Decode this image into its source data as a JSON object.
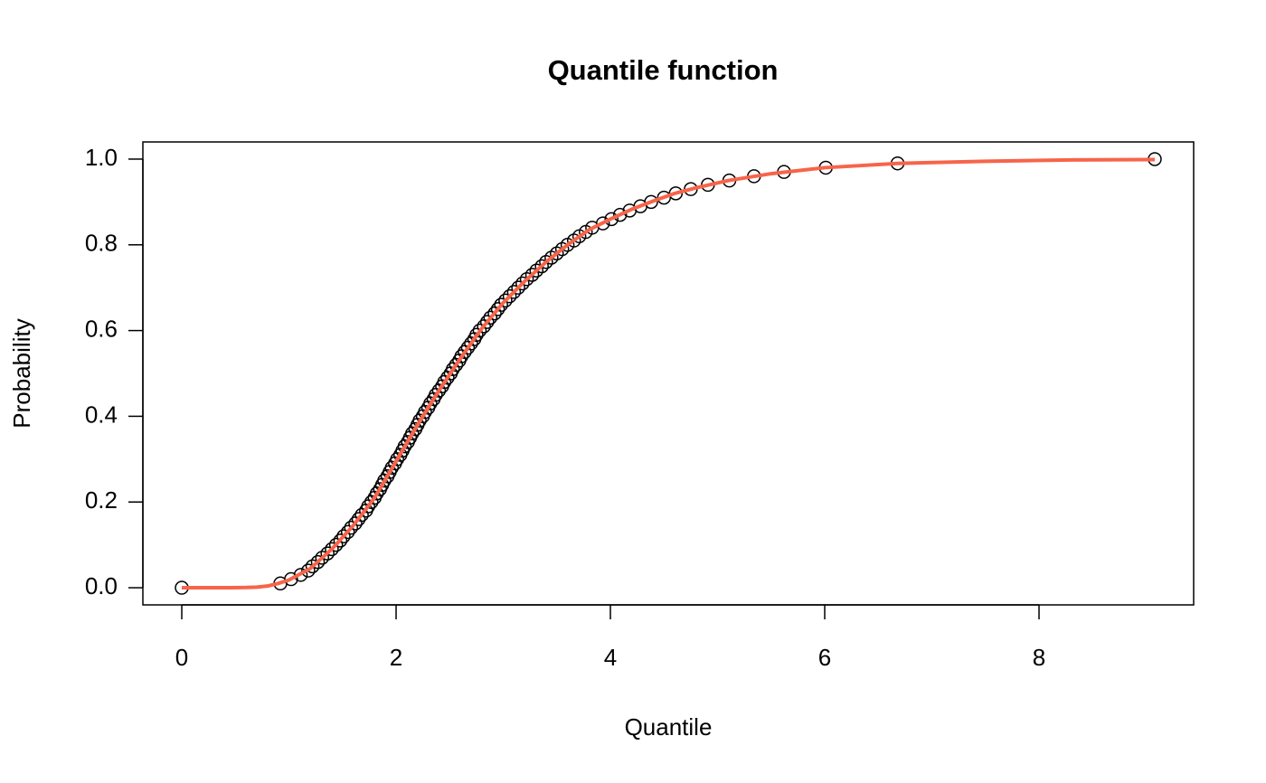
{
  "chart_data": {
    "type": "scatter",
    "title": "Quantile function",
    "xlabel": "Quantile",
    "ylabel": "Probability",
    "xlim": [
      -0.363,
      9.443
    ],
    "ylim": [
      -0.04,
      1.04
    ],
    "xticks": [
      0,
      2,
      4,
      6,
      8
    ],
    "yticks": [
      {
        "value": 0,
        "label": "0.0"
      },
      0.2,
      0.4,
      0.6,
      0.8,
      {
        "value": 1,
        "label": "1.0"
      }
    ],
    "series": [
      {
        "mode": "markers",
        "color": "#000000",
        "x": [
          0,
          0.92,
          1.02,
          1.11,
          1.18,
          1.22,
          1.27,
          1.31,
          1.36,
          1.4,
          1.44,
          1.48,
          1.51,
          1.55,
          1.58,
          1.62,
          1.65,
          1.68,
          1.72,
          1.74,
          1.77,
          1.8,
          1.82,
          1.85,
          1.87,
          1.89,
          1.92,
          1.94,
          1.96,
          1.99,
          2.01,
          2.04,
          2.06,
          2.08,
          2.11,
          2.13,
          2.15,
          2.18,
          2.2,
          2.22,
          2.25,
          2.27,
          2.3,
          2.32,
          2.35,
          2.37,
          2.4,
          2.43,
          2.45,
          2.48,
          2.51,
          2.53,
          2.56,
          2.59,
          2.61,
          2.64,
          2.67,
          2.7,
          2.73,
          2.75,
          2.78,
          2.82,
          2.85,
          2.88,
          2.92,
          2.95,
          2.98,
          3.02,
          3.06,
          3.1,
          3.14,
          3.18,
          3.22,
          3.27,
          3.31,
          3.36,
          3.4,
          3.45,
          3.5,
          3.55,
          3.6,
          3.66,
          3.71,
          3.77,
          3.83,
          3.93,
          4.01,
          4.09,
          4.18,
          4.28,
          4.38,
          4.5,
          4.61,
          4.75,
          4.91,
          5.11,
          5.34,
          5.62,
          6.01,
          6.68,
          9.08
        ],
        "values": [
          0,
          0.01,
          0.02,
          0.03,
          0.04,
          0.05,
          0.06,
          0.07,
          0.08,
          0.09,
          0.1,
          0.11,
          0.12,
          0.13,
          0.14,
          0.15,
          0.16,
          0.17,
          0.18,
          0.19,
          0.2,
          0.21,
          0.22,
          0.23,
          0.24,
          0.25,
          0.26,
          0.27,
          0.28,
          0.29,
          0.3,
          0.31,
          0.32,
          0.33,
          0.34,
          0.35,
          0.36,
          0.37,
          0.38,
          0.39,
          0.4,
          0.41,
          0.42,
          0.43,
          0.44,
          0.45,
          0.46,
          0.47,
          0.48,
          0.49,
          0.5,
          0.51,
          0.52,
          0.53,
          0.54,
          0.55,
          0.56,
          0.57,
          0.58,
          0.59,
          0.6,
          0.61,
          0.62,
          0.63,
          0.64,
          0.65,
          0.66,
          0.67,
          0.68,
          0.69,
          0.7,
          0.71,
          0.72,
          0.73,
          0.74,
          0.75,
          0.76,
          0.77,
          0.78,
          0.79,
          0.8,
          0.81,
          0.82,
          0.83,
          0.84,
          0.85,
          0.86,
          0.87,
          0.88,
          0.89,
          0.9,
          0.91,
          0.92,
          0.93,
          0.94,
          0.95,
          0.96,
          0.97,
          0.98,
          0.99,
          1
        ]
      },
      {
        "mode": "line",
        "color": "#f7644a",
        "x": [
          0,
          0.2,
          0.4,
          0.6,
          0.7,
          0.8,
          0.9,
          1.0,
          1.2,
          1.4,
          1.6,
          1.8,
          2.0,
          2.2,
          2.4,
          2.6,
          2.8,
          3.0,
          3.2,
          3.4,
          3.6,
          3.8,
          4.0,
          4.2,
          4.4,
          4.6,
          4.8,
          5.1,
          5.5,
          6.0,
          6.68,
          7.5,
          8.3,
          9.08
        ],
        "values": [
          0,
          0,
          0,
          0.0005,
          0.0015,
          0.004,
          0.01,
          0.018,
          0.045,
          0.09,
          0.145,
          0.21,
          0.295,
          0.38,
          0.46,
          0.535,
          0.605,
          0.665,
          0.715,
          0.76,
          0.8,
          0.835,
          0.86,
          0.883,
          0.902,
          0.92,
          0.933,
          0.95,
          0.966,
          0.98,
          0.99,
          0.995,
          0.998,
          0.999
        ]
      }
    ]
  }
}
